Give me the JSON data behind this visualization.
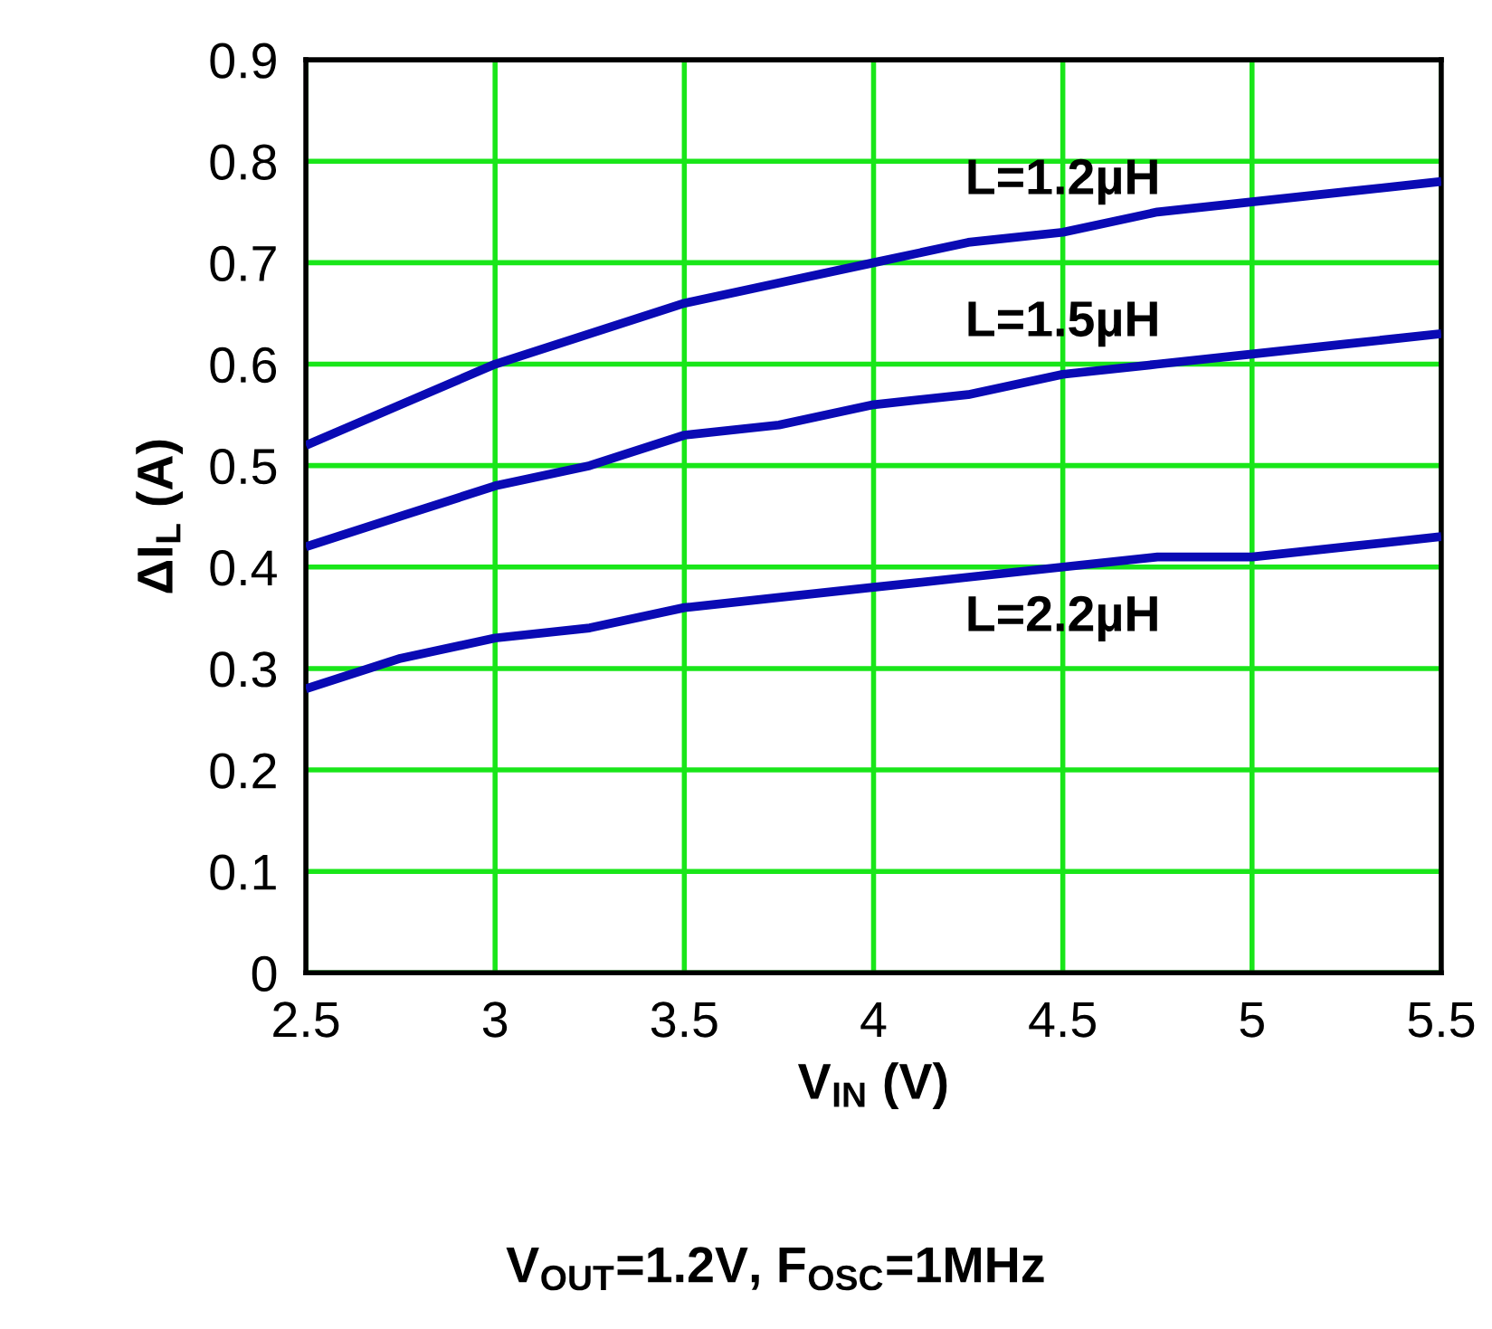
{
  "chart_data": {
    "type": "line",
    "xlabel": "V$_{IN}$ (V)",
    "ylabel": "ΔI$_{L}$ (A)",
    "x": [
      2.5,
      2.75,
      3,
      3.25,
      3.5,
      3.75,
      4,
      4.25,
      4.5,
      4.75,
      5,
      5.25,
      5.5
    ],
    "series": [
      {
        "name": "L=1.2µH",
        "color": "#0a0ab4",
        "values": [
          0.52,
          0.56,
          0.6,
          0.63,
          0.66,
          0.68,
          0.7,
          0.72,
          0.73,
          0.75,
          0.76,
          0.77,
          0.78
        ]
      },
      {
        "name": "L=1.5µH",
        "color": "#0a0ab4",
        "values": [
          0.42,
          0.45,
          0.48,
          0.5,
          0.53,
          0.54,
          0.56,
          0.57,
          0.59,
          0.6,
          0.61,
          0.62,
          0.63
        ]
      },
      {
        "name": "L=2.2µH",
        "color": "#0a0ab4",
        "values": [
          0.28,
          0.31,
          0.33,
          0.34,
          0.36,
          0.37,
          0.38,
          0.39,
          0.4,
          0.41,
          0.41,
          0.42,
          0.43
        ]
      }
    ],
    "xlim": [
      2.5,
      5.5
    ],
    "xticks": [
      2.5,
      3,
      3.5,
      4,
      4.5,
      5,
      5.5
    ],
    "ylim": [
      0,
      0.9
    ],
    "yticks": [
      0,
      0.1,
      0.2,
      0.3,
      0.4,
      0.5,
      0.6,
      0.7,
      0.8,
      0.9
    ],
    "grid": true,
    "marker": "none",
    "line_style": "solid",
    "legend": false,
    "annotations": [
      "V$_{OUT}$=1.2V, F$_{OSC}$=1MHz"
    ]
  }
}
